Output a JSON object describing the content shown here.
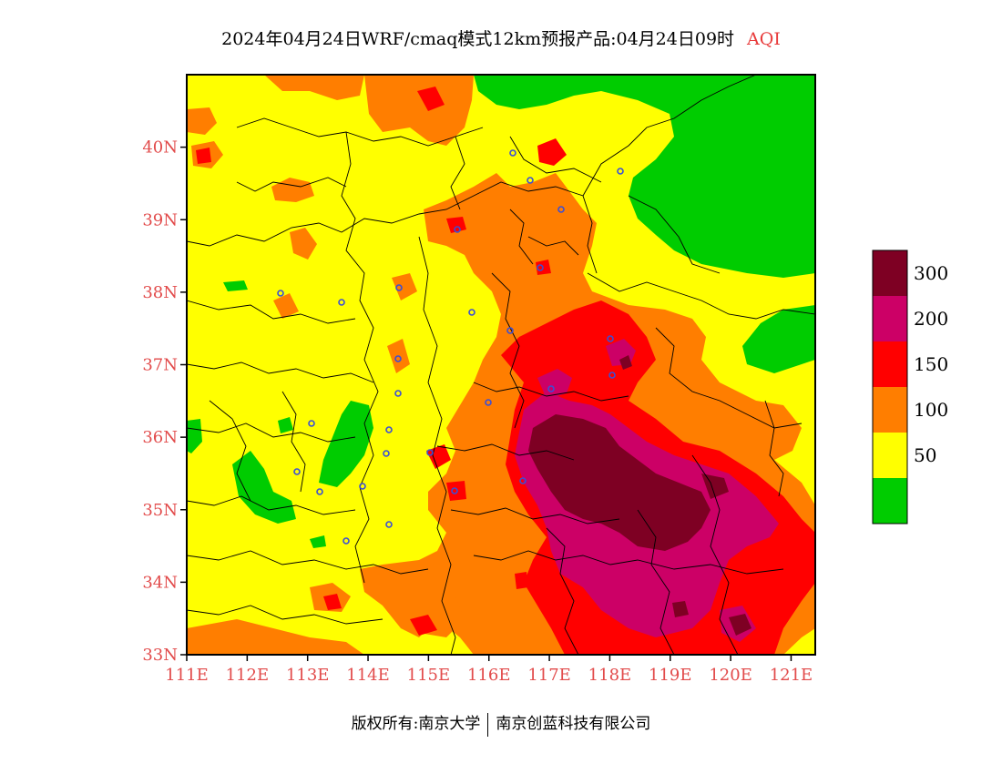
{
  "title": {
    "main": "2024年04月24日WRF/cmaq模式12km预报产品:04月24日09时",
    "variable": "AQI"
  },
  "map": {
    "lon_range": [
      111,
      121.4
    ],
    "lat_range": [
      33,
      41
    ],
    "lon_ticks": [
      "111E",
      "112E",
      "113E",
      "114E",
      "115E",
      "116E",
      "117E",
      "118E",
      "119E",
      "120E",
      "121E"
    ],
    "lat_ticks": [
      "33N",
      "34N",
      "35N",
      "36N",
      "37N",
      "38N",
      "39N",
      "40N"
    ],
    "lon_tick_values": [
      111,
      112,
      113,
      114,
      115,
      116,
      117,
      118,
      119,
      120,
      121
    ],
    "lat_tick_values": [
      33,
      34,
      35,
      36,
      37,
      38,
      39,
      40
    ],
    "fill_classes": [
      {
        "level": "0-50",
        "color": "#00cc00"
      },
      {
        "level": "50-100",
        "color": "#ffff00"
      },
      {
        "level": "100-150",
        "color": "#ff7e00"
      },
      {
        "level": "150-200",
        "color": "#ff0000"
      },
      {
        "level": "200-300",
        "color": "#cc0066"
      },
      {
        "level": ">300",
        "color": "#7e0023"
      }
    ]
  },
  "legend": {
    "labels": [
      "300",
      "200",
      "150",
      "100",
      "50"
    ],
    "colors": [
      "#7e0023",
      "#cc0066",
      "#ff0000",
      "#ff7e00",
      "#ffff00",
      "#00cc00"
    ]
  },
  "footer": {
    "copyright": "版权所有:南京大学",
    "company": "南京创蓝科技有限公司"
  }
}
